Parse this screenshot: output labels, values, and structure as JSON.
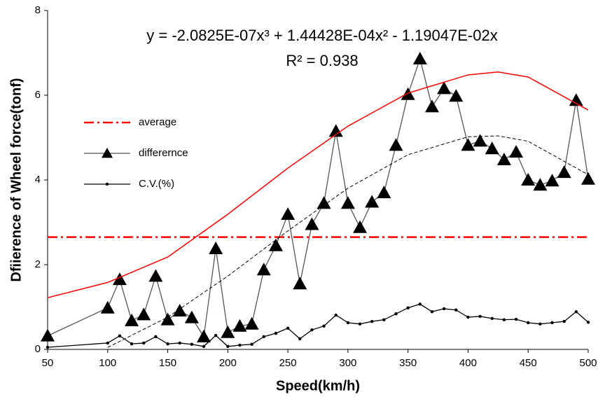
{
  "chart_data": {
    "type": "line",
    "x_label": "Speed(km/h)",
    "y_label": "Dfiierence of Wheel force(tonf)",
    "equation": "y = -2.0825E-07x³ + 1.44428E-04x² - 1.19047E-02x",
    "r_squared": "R² = 0.938",
    "xlim": [
      50,
      500
    ],
    "xticks": [
      50,
      100,
      150,
      200,
      250,
      300,
      350,
      400,
      450,
      500
    ],
    "ylim": [
      0,
      8
    ],
    "yticks": [
      0,
      2,
      4,
      6,
      8
    ],
    "grid": false,
    "legend": "left",
    "series": [
      {
        "name": "average",
        "color": "#ff0000",
        "dash": "dashdot",
        "marker": "none",
        "x": [
          50,
          500
        ],
        "values": [
          2.65,
          2.65
        ]
      },
      {
        "name": "differernce",
        "color": "#000000",
        "dash": "solid",
        "marker": "triangle",
        "x": [
          50,
          100,
          110,
          120,
          130,
          140,
          150,
          160,
          170,
          180,
          190,
          200,
          210,
          220,
          230,
          240,
          250,
          260,
          270,
          280,
          290,
          300,
          310,
          320,
          330,
          340,
          350,
          360,
          370,
          380,
          390,
          400,
          410,
          420,
          430,
          440,
          450,
          460,
          470,
          480,
          490,
          500
        ],
        "values": [
          0.32,
          0.98,
          1.65,
          0.68,
          0.82,
          1.73,
          0.7,
          0.91,
          0.75,
          0.3,
          2.38,
          0.4,
          0.55,
          0.6,
          1.88,
          2.45,
          3.19,
          1.55,
          2.95,
          3.45,
          5.15,
          3.45,
          2.88,
          3.48,
          3.7,
          4.82,
          6.02,
          6.86,
          5.73,
          6.16,
          5.98,
          4.82,
          4.92,
          4.74,
          4.48,
          4.66,
          4.0,
          3.88,
          3.98,
          4.18,
          5.88,
          4.02
        ]
      },
      {
        "name": "C.V.(%)",
        "color": "#000000",
        "dash": "solid",
        "marker": "dot",
        "x": [
          50,
          100,
          110,
          120,
          130,
          140,
          150,
          160,
          170,
          180,
          190,
          200,
          210,
          220,
          230,
          240,
          250,
          260,
          270,
          280,
          290,
          300,
          310,
          320,
          330,
          340,
          350,
          360,
          370,
          380,
          390,
          400,
          410,
          420,
          430,
          440,
          450,
          460,
          470,
          480,
          490,
          500
        ],
        "values": [
          0.05,
          0.15,
          0.32,
          0.13,
          0.15,
          0.3,
          0.13,
          0.15,
          0.12,
          0.07,
          0.33,
          0.07,
          0.1,
          0.12,
          0.3,
          0.38,
          0.5,
          0.25,
          0.46,
          0.55,
          0.81,
          0.63,
          0.6,
          0.66,
          0.7,
          0.84,
          0.98,
          1.07,
          0.89,
          0.96,
          0.93,
          0.76,
          0.78,
          0.73,
          0.7,
          0.71,
          0.63,
          0.6,
          0.63,
          0.66,
          0.89,
          0.64
        ]
      },
      {
        "color": "#ff0000",
        "dash": "solid",
        "marker": "none",
        "x": [
          50,
          100,
          150,
          200,
          250,
          300,
          350,
          400,
          425,
          450,
          500
        ],
        "values": [
          1.22,
          1.58,
          2.18,
          3.19,
          4.28,
          5.27,
          6.05,
          6.48,
          6.55,
          6.43,
          5.65
        ]
      },
      {
        "color": "#000000",
        "dash": "dashed",
        "marker": "none",
        "x": [
          100,
          150,
          200,
          250,
          300,
          350,
          400,
          425,
          450,
          500
        ],
        "values": [
          0.046,
          0.761,
          1.73,
          2.797,
          3.805,
          4.596,
          5.018,
          5.04,
          4.913,
          4.124
        ]
      }
    ]
  }
}
